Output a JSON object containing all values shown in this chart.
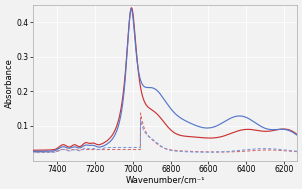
{
  "x_min": 6100,
  "x_max": 7550,
  "y_min": 0.0,
  "y_max": 0.45,
  "x_ticks": [
    7400,
    7200,
    7000,
    6800,
    6600,
    6400,
    6200
  ],
  "y_ticks": [
    0.1,
    0.2,
    0.3,
    0.4
  ],
  "xlabel": "Wavenumber/cm⁻¹",
  "ylabel": "Absorbance",
  "background_color": "#f2f2f2",
  "line_colors": {
    "blue_solid": "#5577cc",
    "red_solid": "#cc3333",
    "blue_dashed": "#7799dd",
    "red_dashed": "#dd6666"
  }
}
